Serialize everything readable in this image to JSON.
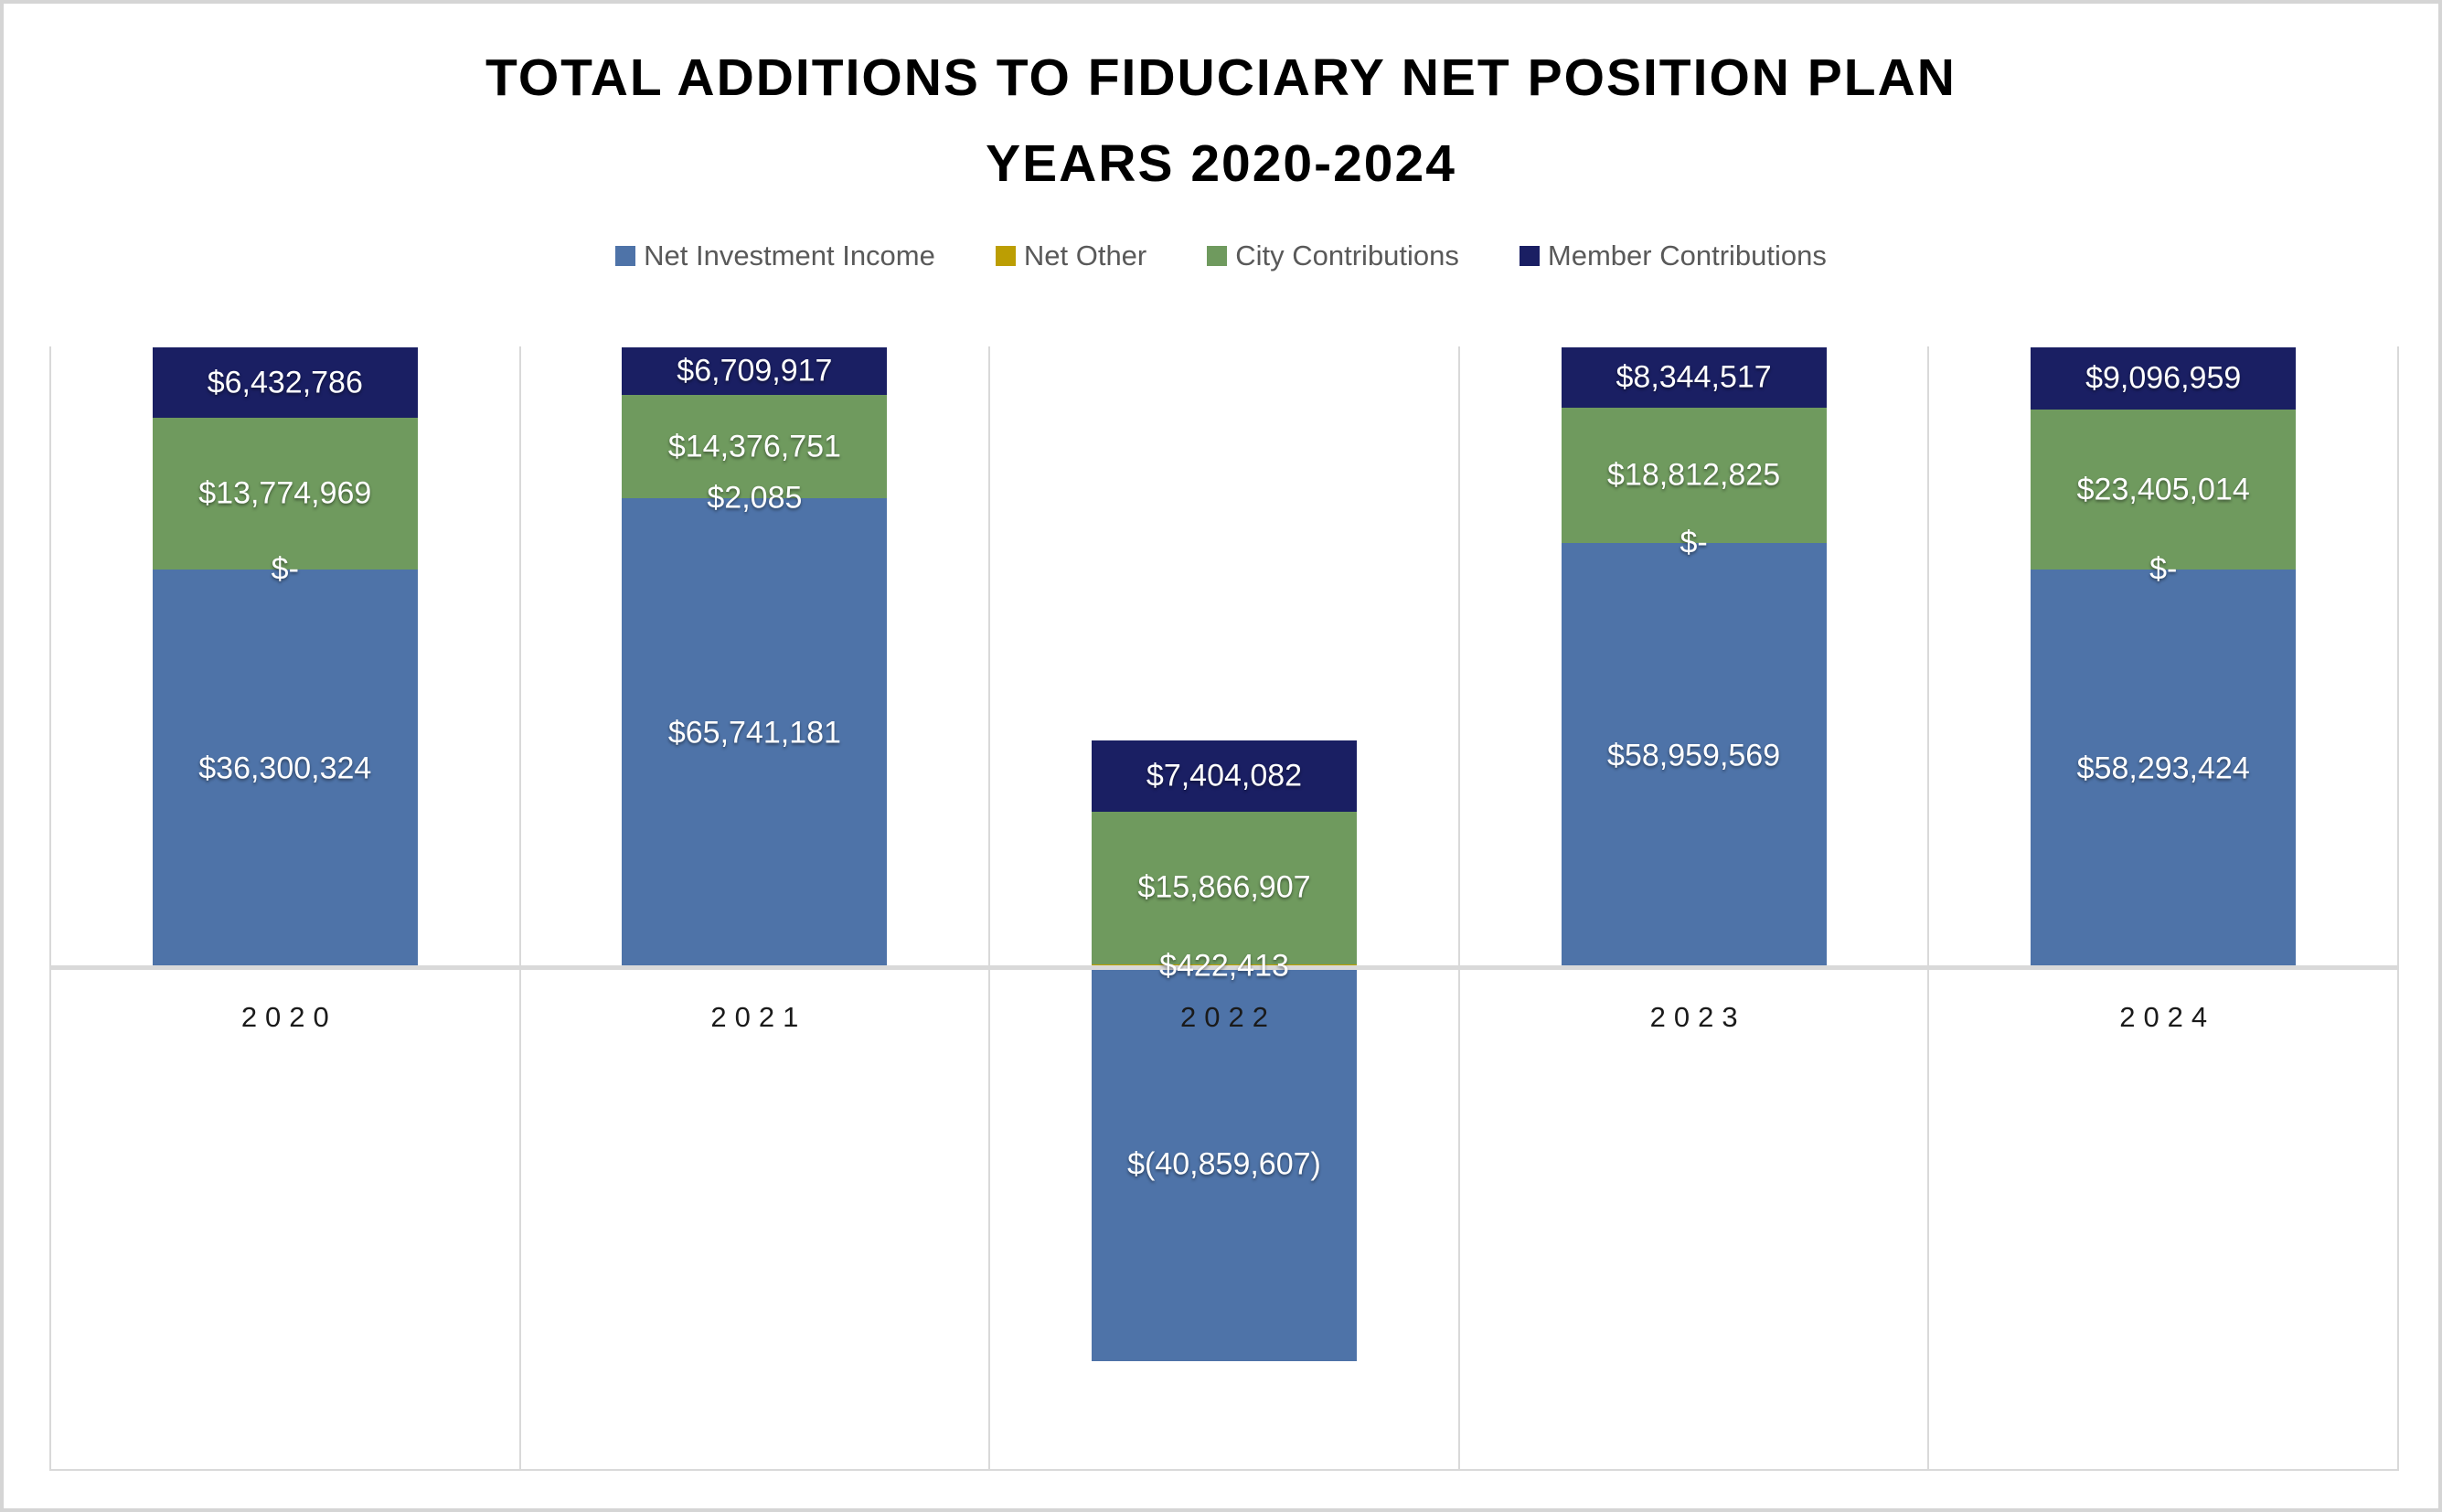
{
  "frame": {
    "background": "#ffffff",
    "border_color": "#d5d5d5"
  },
  "title": {
    "line1": "TOTAL ADDITIONS TO FIDUCIARY NET POSITION PLAN",
    "line2": "YEARS 2020-2024",
    "color": "#000000"
  },
  "legend": {
    "position": "top",
    "text_color": "#595959",
    "items": [
      {
        "label": "Net Investment Income",
        "color": "#4E73A8"
      },
      {
        "label": "Net Other",
        "color": "#BC9E03"
      },
      {
        "label": "City Contributions",
        "color": "#6F9A5E"
      },
      {
        "label": "Member Contributions",
        "color": "#1A1F63"
      }
    ]
  },
  "chart_data": {
    "type": "bar",
    "stacked": "100%-of-absolute-values (each year's segments sized by |value|/sum|values|; positives above zero line, negatives below)",
    "title": "TOTAL ADDITIONS TO FIDUCIARY NET POSITION PLAN YEARS 2020-2024",
    "legend_position": "top",
    "value_labels_shown": true,
    "categories": [
      "2020",
      "2021",
      "2022",
      "2023",
      "2024"
    ],
    "series": [
      {
        "name": "Net Investment Income",
        "color": "#4E73A8",
        "values": [
          36300324,
          65741181,
          -40859607,
          58959569,
          58293424
        ],
        "labels": [
          "$36,300,324",
          "$65,741,181",
          "$(40,859,607)",
          "$58,959,569",
          "$58,293,424"
        ]
      },
      {
        "name": "Net Other",
        "color": "#C0A202",
        "values": [
          0,
          2085,
          422413,
          0,
          0
        ],
        "labels": [
          "$-",
          "$2,085",
          "$422,413",
          "$-",
          "$-"
        ]
      },
      {
        "name": "City Contributions",
        "color": "#6F9A5E",
        "values": [
          13774969,
          14376751,
          15866907,
          18812825,
          23405014
        ],
        "labels": [
          "$13,774,969",
          "$14,376,751",
          "$15,866,907",
          "$18,812,825",
          "$23,405,014"
        ]
      },
      {
        "name": "Member Contributions",
        "color": "#1A1F63",
        "values": [
          6432786,
          6709917,
          7404082,
          8344517,
          9096959
        ],
        "labels": [
          "$6,432,786",
          "$6,709,917",
          "$7,404,082",
          "$8,344,517",
          "$9,096,959"
        ]
      }
    ],
    "axis": {
      "x_labels": [
        "2020",
        "2021",
        "2022",
        "2023",
        "2024"
      ],
      "x_label_color": "#1a1a1a",
      "gridline_color": "#d9d9d9",
      "zero_line_color": "#d9d9d9",
      "vertical_category_separators": true,
      "y_axis_visible": false
    }
  }
}
